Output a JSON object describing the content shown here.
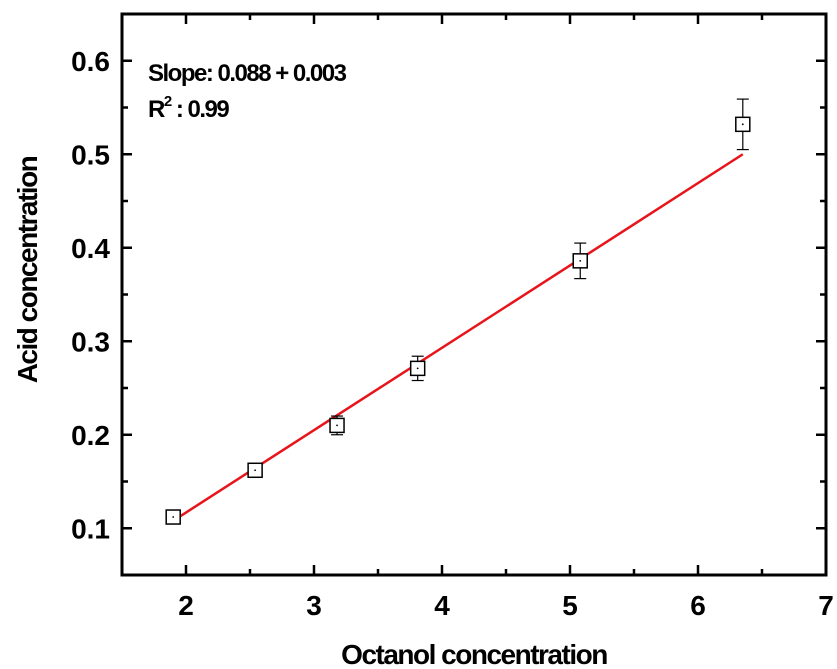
{
  "chart_data": {
    "type": "scatter",
    "xlabel": "Octanol concentration",
    "ylabel": "Acid concentration",
    "xlim": [
      1.5,
      7
    ],
    "ylim": [
      0.05,
      0.65
    ],
    "x_ticks": [
      "2",
      "3",
      "4",
      "5",
      "6",
      "7"
    ],
    "y_ticks": [
      "0.1",
      "0.2",
      "0.3",
      "0.4",
      "0.5",
      "0.6"
    ],
    "grid": false,
    "series": [
      {
        "marker": "open-square",
        "x": [
          1.9,
          2.54,
          3.18,
          3.81,
          5.08,
          6.35
        ],
        "y": [
          0.112,
          0.162,
          0.21,
          0.271,
          0.386,
          0.532
        ],
        "y_err": [
          0.006,
          0.004,
          0.01,
          0.013,
          0.019,
          0.027
        ]
      }
    ],
    "fit_line": {
      "color": "#e8141b",
      "x": [
        1.9,
        6.35
      ],
      "y": [
        0.108,
        0.5
      ]
    },
    "annotations": {
      "slope": "Slope: 0.088 + 0.003",
      "r2_prefix": "R",
      "r2_sup": "2",
      "r2_value": " : 0.99"
    }
  }
}
